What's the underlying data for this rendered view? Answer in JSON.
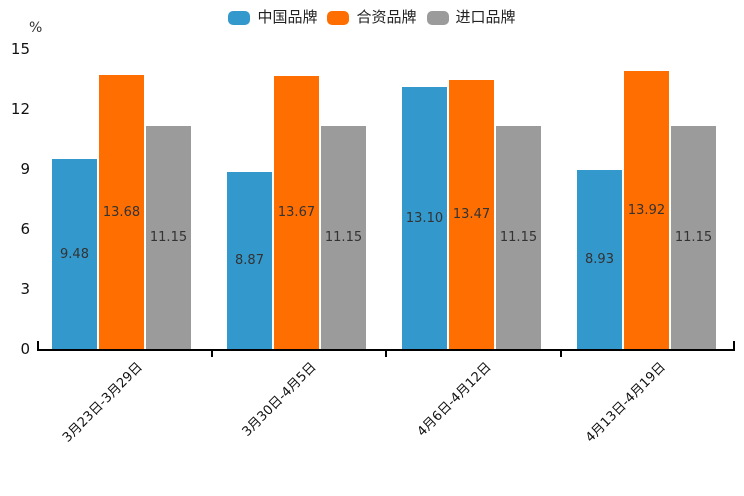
{
  "chart_data": {
    "type": "bar",
    "title": "",
    "categories": [
      "3月23日-3月29日",
      "3月30日-4月5日",
      "4月6日-4月12日",
      "4月13日-4月19日"
    ],
    "series": [
      {
        "name": "中国品牌",
        "color": "#3398CC",
        "values": [
          9.48,
          8.87,
          13.1,
          8.93
        ],
        "labels": [
          "9.48",
          "8.87",
          "13.10",
          "8.93"
        ]
      },
      {
        "name": "合资品牌",
        "color": "#FF6E00",
        "values": [
          13.68,
          13.67,
          13.47,
          13.92
        ],
        "labels": [
          "13.68",
          "13.67",
          "13.47",
          "13.92"
        ]
      },
      {
        "name": "进口品牌",
        "color": "#9B9B9B",
        "values": [
          11.15,
          11.15,
          11.15,
          11.15
        ],
        "labels": [
          "11.15",
          "11.15",
          "11.15",
          "11.15"
        ]
      }
    ],
    "xlabel": "",
    "ylabel": "%",
    "ylim": [
      0,
      15
    ],
    "yticks": [
      0,
      3,
      6,
      9,
      12,
      15
    ],
    "grid": false,
    "legend_position": "top-center",
    "value_label_position": "inside-center",
    "value_label_color": "#333333",
    "axis_color": "#000000",
    "background": "#FFFFFF"
  }
}
